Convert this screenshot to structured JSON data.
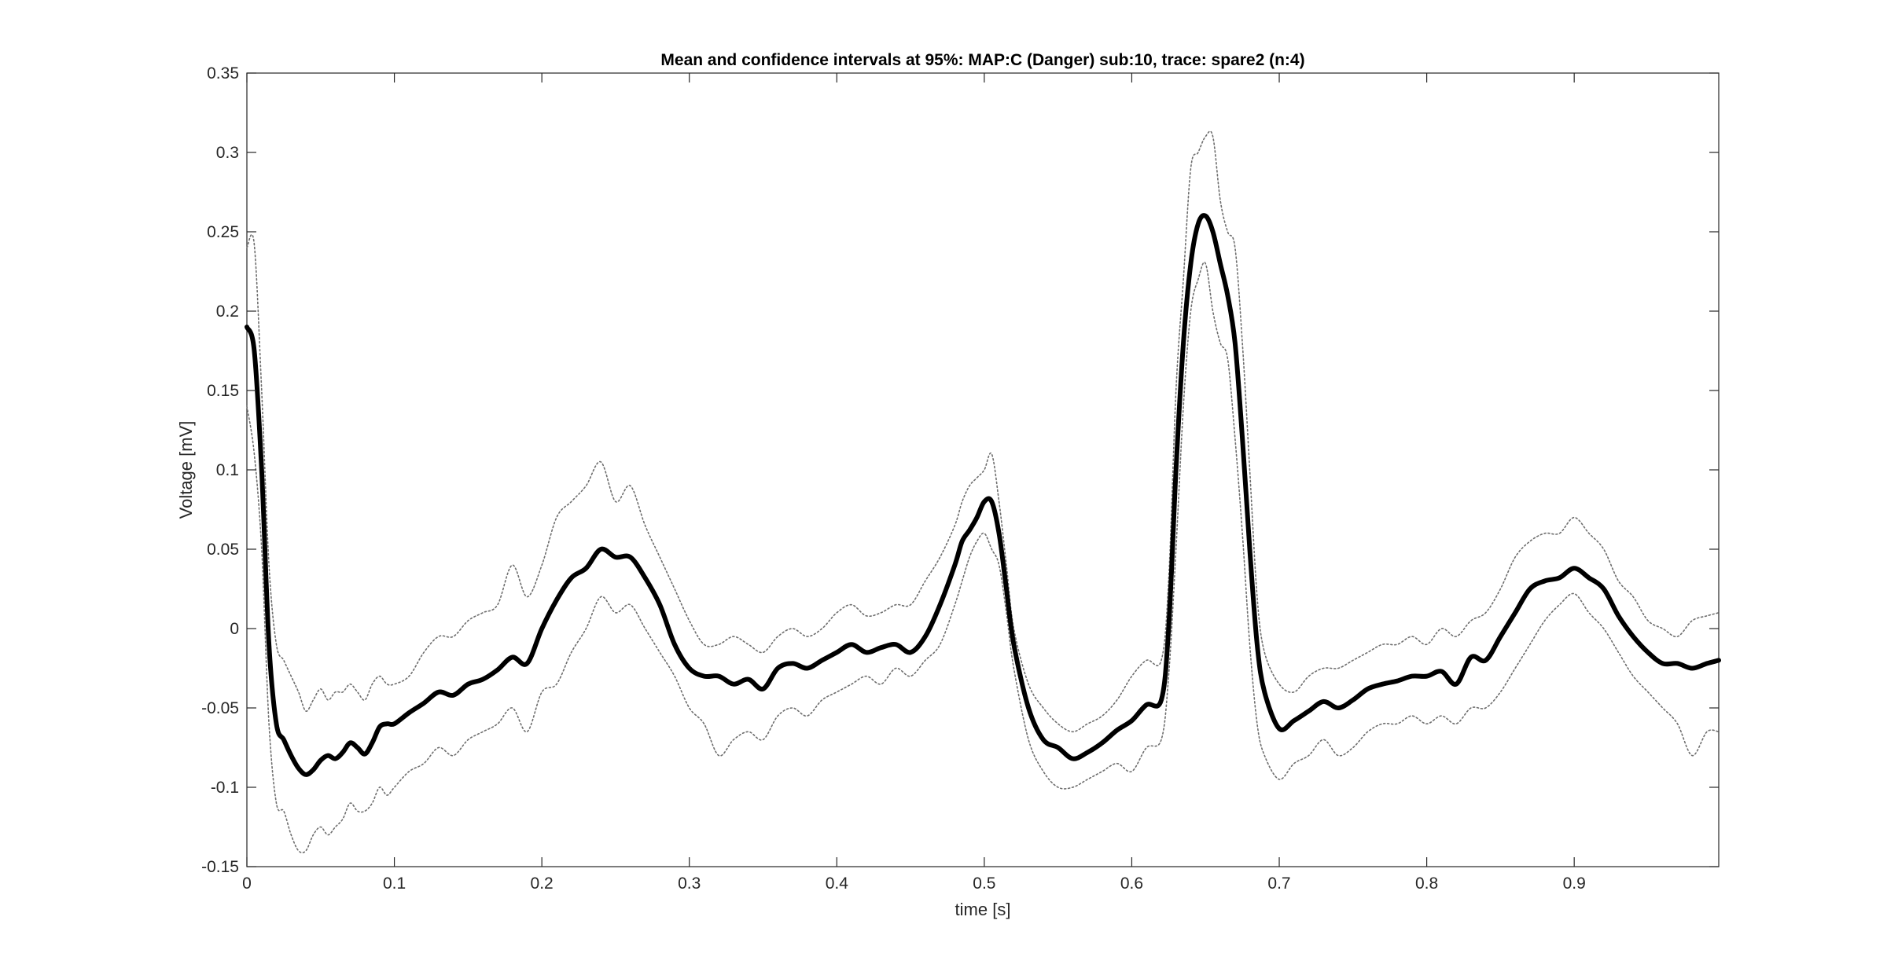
{
  "chart_data": {
    "type": "line",
    "title": "Mean and confidence intervals at 95%: MAP:C (Danger) sub:10, trace: spare2 (n:4)",
    "xlabel": "time [s]",
    "ylabel": "Voltage [mV]",
    "xlim": [
      0,
      0.998
    ],
    "ylim": [
      -0.15,
      0.35
    ],
    "xticks": [
      0,
      0.1,
      0.2,
      0.3,
      0.4,
      0.5,
      0.6,
      0.7,
      0.8,
      0.9
    ],
    "xtick_labels": [
      "0",
      "0.1",
      "0.2",
      "0.3",
      "0.4",
      "0.5",
      "0.6",
      "0.7",
      "0.8",
      "0.9"
    ],
    "yticks": [
      -0.15,
      -0.1,
      -0.05,
      0,
      0.05,
      0.1,
      0.15,
      0.2,
      0.25,
      0.3,
      0.35
    ],
    "ytick_labels": [
      "-0.15",
      "-0.1",
      "-0.05",
      "0",
      "0.05",
      "0.1",
      "0.15",
      "0.2",
      "0.25",
      "0.3",
      "0.35"
    ],
    "grid": false,
    "legend": "none",
    "colors": {
      "mean": "#000000",
      "ci": "#6e6e6e",
      "axis": "#262626"
    },
    "series": [
      {
        "role": "mean",
        "x": [
          0,
          0.005,
          0.01,
          0.015,
          0.02,
          0.025,
          0.03,
          0.035,
          0.04,
          0.045,
          0.05,
          0.055,
          0.06,
          0.065,
          0.07,
          0.075,
          0.08,
          0.085,
          0.09,
          0.095,
          0.1,
          0.11,
          0.12,
          0.13,
          0.14,
          0.15,
          0.16,
          0.17,
          0.18,
          0.19,
          0.2,
          0.21,
          0.22,
          0.23,
          0.24,
          0.25,
          0.26,
          0.27,
          0.28,
          0.29,
          0.3,
          0.31,
          0.32,
          0.33,
          0.34,
          0.35,
          0.36,
          0.37,
          0.38,
          0.39,
          0.4,
          0.41,
          0.42,
          0.43,
          0.44,
          0.45,
          0.46,
          0.47,
          0.48,
          0.485,
          0.49,
          0.495,
          0.5,
          0.505,
          0.51,
          0.515,
          0.52,
          0.53,
          0.54,
          0.55,
          0.56,
          0.57,
          0.58,
          0.59,
          0.6,
          0.61,
          0.62,
          0.625,
          0.63,
          0.635,
          0.64,
          0.645,
          0.65,
          0.655,
          0.66,
          0.665,
          0.67,
          0.675,
          0.68,
          0.685,
          0.69,
          0.7,
          0.71,
          0.72,
          0.73,
          0.74,
          0.75,
          0.76,
          0.77,
          0.78,
          0.79,
          0.8,
          0.81,
          0.82,
          0.83,
          0.84,
          0.85,
          0.86,
          0.87,
          0.88,
          0.89,
          0.9,
          0.91,
          0.92,
          0.93,
          0.94,
          0.95,
          0.96,
          0.97,
          0.98,
          0.99,
          0.998
        ],
        "y": [
          0.19,
          0.175,
          0.1,
          -0.01,
          -0.06,
          -0.07,
          -0.08,
          -0.088,
          -0.092,
          -0.089,
          -0.083,
          -0.08,
          -0.082,
          -0.078,
          -0.072,
          -0.075,
          -0.079,
          -0.072,
          -0.062,
          -0.06,
          -0.06,
          -0.053,
          -0.047,
          -0.04,
          -0.042,
          -0.035,
          -0.032,
          -0.026,
          -0.018,
          -0.022,
          0.0,
          0.018,
          0.032,
          0.038,
          0.05,
          0.045,
          0.045,
          0.032,
          0.015,
          -0.01,
          -0.025,
          -0.03,
          -0.03,
          -0.035,
          -0.032,
          -0.038,
          -0.025,
          -0.022,
          -0.025,
          -0.02,
          -0.015,
          -0.01,
          -0.015,
          -0.012,
          -0.01,
          -0.015,
          -0.005,
          0.015,
          0.04,
          0.055,
          0.062,
          0.07,
          0.08,
          0.08,
          0.06,
          0.025,
          -0.01,
          -0.05,
          -0.07,
          -0.075,
          -0.082,
          -0.078,
          -0.072,
          -0.064,
          -0.058,
          -0.048,
          -0.045,
          0.0,
          0.1,
          0.18,
          0.23,
          0.255,
          0.26,
          0.25,
          0.23,
          0.21,
          0.18,
          0.12,
          0.05,
          -0.01,
          -0.04,
          -0.063,
          -0.058,
          -0.052,
          -0.046,
          -0.05,
          -0.045,
          -0.038,
          -0.035,
          -0.033,
          -0.03,
          -0.03,
          -0.027,
          -0.035,
          -0.018,
          -0.02,
          -0.005,
          0.01,
          0.025,
          0.03,
          0.032,
          0.038,
          0.032,
          0.025,
          0.008,
          -0.005,
          -0.015,
          -0.022,
          -0.022,
          -0.025,
          -0.022,
          -0.02
        ]
      },
      {
        "role": "upper-ci",
        "x": [
          0,
          0.005,
          0.01,
          0.015,
          0.02,
          0.025,
          0.03,
          0.035,
          0.04,
          0.045,
          0.05,
          0.055,
          0.06,
          0.065,
          0.07,
          0.075,
          0.08,
          0.085,
          0.09,
          0.095,
          0.1,
          0.11,
          0.12,
          0.13,
          0.14,
          0.15,
          0.16,
          0.17,
          0.18,
          0.19,
          0.2,
          0.21,
          0.22,
          0.23,
          0.24,
          0.25,
          0.26,
          0.27,
          0.28,
          0.29,
          0.3,
          0.31,
          0.32,
          0.33,
          0.34,
          0.35,
          0.36,
          0.37,
          0.38,
          0.39,
          0.4,
          0.41,
          0.42,
          0.43,
          0.44,
          0.45,
          0.46,
          0.47,
          0.48,
          0.485,
          0.49,
          0.495,
          0.5,
          0.505,
          0.51,
          0.515,
          0.52,
          0.53,
          0.54,
          0.55,
          0.56,
          0.57,
          0.58,
          0.59,
          0.6,
          0.61,
          0.62,
          0.625,
          0.63,
          0.635,
          0.64,
          0.645,
          0.65,
          0.655,
          0.66,
          0.665,
          0.67,
          0.675,
          0.68,
          0.685,
          0.69,
          0.7,
          0.71,
          0.72,
          0.73,
          0.74,
          0.75,
          0.76,
          0.77,
          0.78,
          0.79,
          0.8,
          0.81,
          0.82,
          0.83,
          0.84,
          0.85,
          0.86,
          0.87,
          0.88,
          0.89,
          0.9,
          0.91,
          0.92,
          0.93,
          0.94,
          0.95,
          0.96,
          0.97,
          0.98,
          0.99,
          0.998
        ],
        "y": [
          0.24,
          0.242,
          0.15,
          0.04,
          -0.01,
          -0.02,
          -0.03,
          -0.04,
          -0.052,
          -0.045,
          -0.038,
          -0.045,
          -0.04,
          -0.04,
          -0.035,
          -0.04,
          -0.045,
          -0.035,
          -0.03,
          -0.035,
          -0.035,
          -0.03,
          -0.015,
          -0.005,
          -0.005,
          0.005,
          0.01,
          0.015,
          0.04,
          0.02,
          0.04,
          0.07,
          0.08,
          0.09,
          0.105,
          0.08,
          0.09,
          0.065,
          0.045,
          0.025,
          0.005,
          -0.01,
          -0.01,
          -0.005,
          -0.01,
          -0.015,
          -0.005,
          0.0,
          -0.005,
          0.0,
          0.01,
          0.015,
          0.008,
          0.01,
          0.015,
          0.015,
          0.03,
          0.045,
          0.065,
          0.08,
          0.09,
          0.095,
          0.1,
          0.11,
          0.08,
          0.04,
          0.0,
          -0.035,
          -0.05,
          -0.06,
          -0.065,
          -0.06,
          -0.055,
          -0.045,
          -0.03,
          -0.02,
          -0.02,
          0.03,
          0.15,
          0.22,
          0.29,
          0.3,
          0.31,
          0.31,
          0.27,
          0.25,
          0.24,
          0.18,
          0.1,
          0.02,
          -0.015,
          -0.035,
          -0.04,
          -0.03,
          -0.025,
          -0.025,
          -0.02,
          -0.015,
          -0.01,
          -0.01,
          -0.005,
          -0.01,
          0.0,
          -0.005,
          0.005,
          0.01,
          0.025,
          0.045,
          0.055,
          0.06,
          0.06,
          0.07,
          0.06,
          0.05,
          0.03,
          0.02,
          0.005,
          0.0,
          -0.005,
          0.005,
          0.008,
          0.01
        ]
      },
      {
        "role": "lower-ci",
        "x": [
          0,
          0.005,
          0.01,
          0.015,
          0.02,
          0.025,
          0.03,
          0.035,
          0.04,
          0.045,
          0.05,
          0.055,
          0.06,
          0.065,
          0.07,
          0.075,
          0.08,
          0.085,
          0.09,
          0.095,
          0.1,
          0.11,
          0.12,
          0.13,
          0.14,
          0.15,
          0.16,
          0.17,
          0.18,
          0.19,
          0.2,
          0.21,
          0.22,
          0.23,
          0.24,
          0.25,
          0.26,
          0.27,
          0.28,
          0.29,
          0.3,
          0.31,
          0.32,
          0.33,
          0.34,
          0.35,
          0.36,
          0.37,
          0.38,
          0.39,
          0.4,
          0.41,
          0.42,
          0.43,
          0.44,
          0.45,
          0.46,
          0.47,
          0.48,
          0.485,
          0.49,
          0.495,
          0.5,
          0.505,
          0.51,
          0.515,
          0.52,
          0.53,
          0.54,
          0.55,
          0.56,
          0.57,
          0.58,
          0.59,
          0.6,
          0.61,
          0.62,
          0.625,
          0.63,
          0.635,
          0.64,
          0.645,
          0.65,
          0.655,
          0.66,
          0.665,
          0.67,
          0.675,
          0.68,
          0.685,
          0.69,
          0.7,
          0.71,
          0.72,
          0.73,
          0.74,
          0.75,
          0.76,
          0.77,
          0.78,
          0.79,
          0.8,
          0.81,
          0.82,
          0.83,
          0.84,
          0.85,
          0.86,
          0.87,
          0.88,
          0.89,
          0.9,
          0.91,
          0.92,
          0.93,
          0.94,
          0.95,
          0.96,
          0.97,
          0.98,
          0.99,
          0.998
        ],
        "y": [
          0.14,
          0.11,
          0.05,
          -0.06,
          -0.11,
          -0.115,
          -0.13,
          -0.14,
          -0.14,
          -0.13,
          -0.125,
          -0.13,
          -0.125,
          -0.12,
          -0.11,
          -0.115,
          -0.115,
          -0.11,
          -0.1,
          -0.105,
          -0.1,
          -0.09,
          -0.085,
          -0.075,
          -0.08,
          -0.07,
          -0.065,
          -0.06,
          -0.05,
          -0.065,
          -0.04,
          -0.035,
          -0.015,
          0.0,
          0.02,
          0.01,
          0.015,
          0.0,
          -0.015,
          -0.03,
          -0.05,
          -0.06,
          -0.08,
          -0.07,
          -0.065,
          -0.07,
          -0.055,
          -0.05,
          -0.055,
          -0.045,
          -0.04,
          -0.035,
          -0.03,
          -0.035,
          -0.025,
          -0.03,
          -0.02,
          -0.01,
          0.015,
          0.03,
          0.045,
          0.055,
          0.06,
          0.05,
          0.04,
          0.01,
          -0.025,
          -0.07,
          -0.09,
          -0.1,
          -0.1,
          -0.095,
          -0.09,
          -0.085,
          -0.09,
          -0.075,
          -0.07,
          -0.03,
          0.05,
          0.14,
          0.2,
          0.22,
          0.23,
          0.2,
          0.18,
          0.17,
          0.12,
          0.06,
          -0.01,
          -0.06,
          -0.08,
          -0.095,
          -0.085,
          -0.08,
          -0.07,
          -0.08,
          -0.075,
          -0.065,
          -0.06,
          -0.06,
          -0.055,
          -0.06,
          -0.055,
          -0.06,
          -0.05,
          -0.05,
          -0.04,
          -0.025,
          -0.01,
          0.005,
          0.015,
          0.022,
          0.01,
          0.0,
          -0.015,
          -0.03,
          -0.04,
          -0.05,
          -0.06,
          -0.08,
          -0.065,
          -0.065
        ]
      }
    ]
  }
}
